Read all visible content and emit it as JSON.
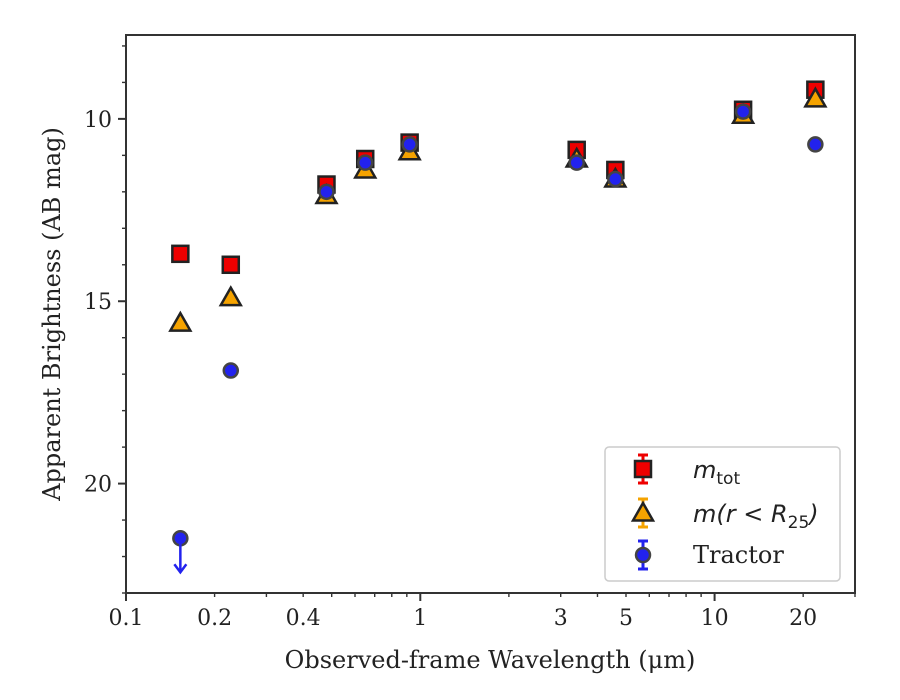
{
  "chart_data": {
    "type": "scatter",
    "title": "",
    "xlabel": "Observed-frame Wavelength (μm)",
    "ylabel": "Apparent Brightness (AB mag)",
    "xscale": "log",
    "xlim": [
      0.1,
      30
    ],
    "ylim": [
      23.0,
      7.7
    ],
    "y_inverted": true,
    "x_ticks": [
      {
        "value": 0.1,
        "label": "0.1"
      },
      {
        "value": 0.2,
        "label": "0.2"
      },
      {
        "value": 0.4,
        "label": "0.4"
      },
      {
        "value": 1,
        "label": "1"
      },
      {
        "value": 3,
        "label": "3"
      },
      {
        "value": 5,
        "label": "5"
      },
      {
        "value": 10,
        "label": "10"
      },
      {
        "value": 20,
        "label": "20"
      }
    ],
    "y_ticks": [
      {
        "value": 10,
        "label": "10"
      },
      {
        "value": 15,
        "label": "15"
      },
      {
        "value": 20,
        "label": "20"
      }
    ],
    "grid": false,
    "legend_position": "bottom-right",
    "series": [
      {
        "name": "m_tot",
        "legend_base": "m",
        "legend_sub": "tot",
        "marker": "square",
        "color": "#ee0000",
        "points": [
          {
            "x": 0.153,
            "y": 13.7
          },
          {
            "x": 0.227,
            "y": 14.0
          },
          {
            "x": 0.48,
            "y": 11.8
          },
          {
            "x": 0.65,
            "y": 11.1
          },
          {
            "x": 0.92,
            "y": 10.65
          },
          {
            "x": 3.4,
            "y": 10.85
          },
          {
            "x": 4.6,
            "y": 11.4
          },
          {
            "x": 12.5,
            "y": 9.75
          },
          {
            "x": 22.0,
            "y": 9.2
          }
        ]
      },
      {
        "name": "m(r < R25)",
        "legend_base": "m(r < R",
        "legend_sub": "25",
        "legend_end": ")",
        "marker": "triangle",
        "color": "#f5a300",
        "points": [
          {
            "x": 0.153,
            "y": 15.6
          },
          {
            "x": 0.227,
            "y": 14.9
          },
          {
            "x": 0.48,
            "y": 12.1
          },
          {
            "x": 0.65,
            "y": 11.4
          },
          {
            "x": 0.92,
            "y": 10.9
          },
          {
            "x": 3.4,
            "y": 11.1
          },
          {
            "x": 4.6,
            "y": 11.65
          },
          {
            "x": 12.5,
            "y": 9.9
          },
          {
            "x": 22.0,
            "y": 9.45
          }
        ]
      },
      {
        "name": "Tractor",
        "marker": "circle",
        "color": "#2222ee",
        "points": [
          {
            "x": 0.153,
            "y": 21.5,
            "upper_limit": true
          },
          {
            "x": 0.227,
            "y": 16.9
          },
          {
            "x": 0.48,
            "y": 12.0
          },
          {
            "x": 0.65,
            "y": 11.2
          },
          {
            "x": 0.92,
            "y": 10.7
          },
          {
            "x": 3.4,
            "y": 11.2
          },
          {
            "x": 4.6,
            "y": 11.65
          },
          {
            "x": 12.5,
            "y": 9.8
          },
          {
            "x": 22.0,
            "y": 10.7
          }
        ]
      }
    ]
  }
}
